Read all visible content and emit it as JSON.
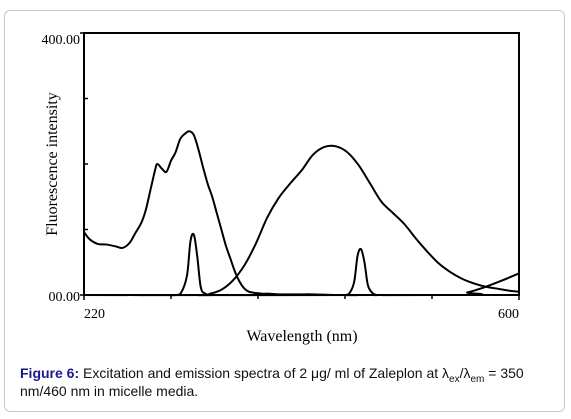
{
  "chart_data": {
    "type": "line",
    "xlabel": "Wavelength (nm)",
    "ylabel": "Fluorescence intensity",
    "xlim": [
      220,
      600
    ],
    "ylim": [
      0,
      400
    ],
    "x_tick_labels": [
      "220",
      "600"
    ],
    "y_tick_labels": [
      "00.00",
      "400.00"
    ],
    "x_minor_ticks": [
      296,
      372,
      448,
      524
    ],
    "y_minor_ticks": [
      100,
      200,
      300
    ],
    "grid": false,
    "legend": "none",
    "line_color": "#000000",
    "series": [
      {
        "x": [
          220,
          225,
          232,
          240,
          248,
          254,
          260,
          265,
          270,
          274,
          278,
          282,
          284,
          288,
          292,
          296,
          300,
          304,
          308,
          312,
          316,
          320,
          324,
          328,
          332,
          336,
          340,
          344,
          348,
          352,
          356,
          360,
          364,
          370,
          376,
          382,
          390,
          400,
          410,
          420,
          440,
          460,
          480,
          500,
          520,
          540,
          560,
          580,
          600
        ],
        "y": [
          96,
          85,
          78,
          77,
          74,
          72,
          80,
          95,
          110,
          130,
          160,
          190,
          200,
          193,
          188,
          205,
          218,
          238,
          246,
          250,
          244,
          222,
          195,
          170,
          150,
          125,
          100,
          75,
          55,
          35,
          20,
          10,
          5,
          3,
          2,
          2,
          1,
          1,
          1,
          1,
          0,
          0,
          0,
          0,
          0,
          0,
          0,
          0,
          0
        ]
      },
      {
        "x": [
          220,
          290,
          300,
          305,
          310,
          313,
          316,
          319,
          322,
          326,
          332,
          340,
          600
        ],
        "y": [
          0,
          0,
          0,
          4,
          30,
          82,
          92,
          58,
          12,
          2,
          0,
          0,
          0
        ]
      },
      {
        "x": [
          220,
          320,
          330,
          340,
          350,
          360,
          370,
          380,
          390,
          400,
          410,
          420,
          430,
          440,
          450,
          460,
          470,
          480,
          490,
          500,
          510,
          520,
          530,
          540,
          550,
          560,
          570,
          580,
          590,
          600
        ],
        "y": [
          0,
          0,
          2,
          8,
          22,
          45,
          78,
          118,
          148,
          170,
          190,
          214,
          226,
          227,
          218,
          198,
          170,
          142,
          125,
          108,
          86,
          66,
          48,
          35,
          25,
          18,
          13,
          10,
          7,
          5
        ]
      },
      {
        "x": [
          220,
          440,
          448,
          452,
          456,
          459,
          462,
          465,
          468,
          472,
          476,
          484,
          600
        ],
        "y": [
          0,
          0,
          0,
          3,
          20,
          60,
          70,
          50,
          15,
          3,
          0,
          0,
          0
        ]
      },
      {
        "x": [
          220,
          540,
          555,
          570,
          585,
          600
        ],
        "y": [
          0,
          0,
          4,
          12,
          22,
          33
        ]
      }
    ]
  },
  "caption": {
    "figure_label": "Figure 6:",
    "text_before": "Excitation and emission spectra of 2 μg/ ml of Zaleplon at λ",
    "sub_ex": "ex",
    "slash": "/λ",
    "sub_em": "em",
    "text_after": " = 350 nm/460 nm in micelle media."
  }
}
